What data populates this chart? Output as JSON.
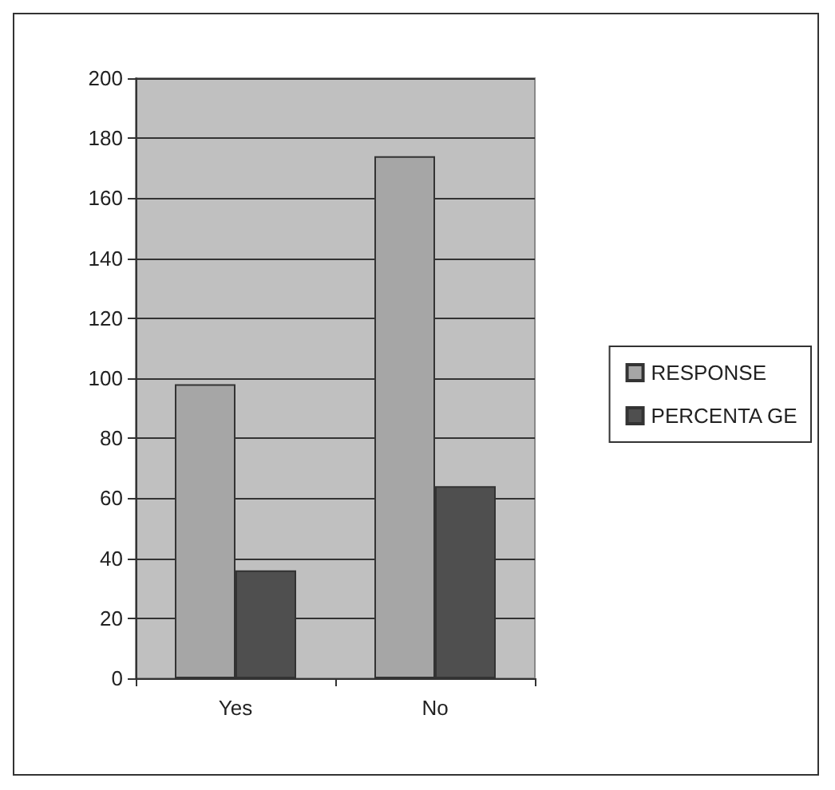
{
  "chart_data": {
    "type": "bar",
    "categories": [
      "Yes",
      "No"
    ],
    "series": [
      {
        "name": "RESPONSE",
        "color": "#a6a6a6",
        "values": [
          98,
          174
        ]
      },
      {
        "name": "PERCENTA GE",
        "color": "#4f4f4f",
        "values": [
          36,
          64
        ]
      }
    ],
    "ylim": [
      0,
      200
    ],
    "yticks": [
      0,
      20,
      40,
      60,
      80,
      100,
      120,
      140,
      160,
      180,
      200
    ],
    "grid": "y",
    "legend": "right"
  }
}
